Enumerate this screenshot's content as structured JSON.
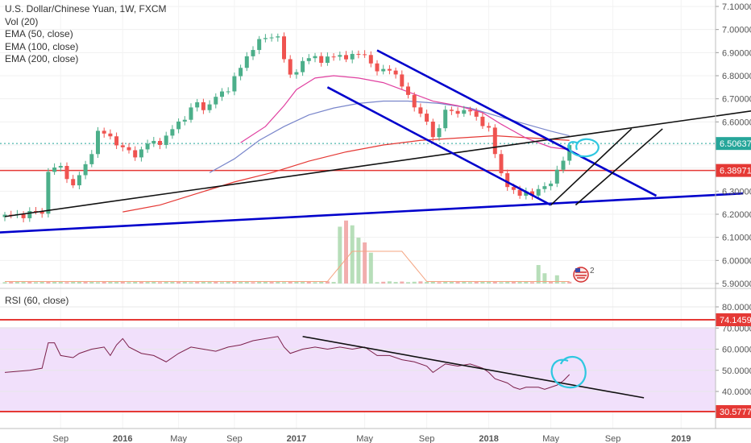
{
  "chart_data": [
    {
      "type": "candlestick",
      "title": "U.S. Dollar/Chinese Yuan, 1W, FXCM",
      "indicators": [
        "Vol (20)",
        "EMA (50, close)",
        "EMA (100, close)",
        "EMA (200, close)"
      ],
      "ylim": [
        5.9,
        7.1
      ],
      "y_ticks": [
        "7.10000",
        "7.00000",
        "6.90000",
        "6.80000",
        "6.70000",
        "6.60000",
        "6.50000",
        "6.40000",
        "6.30000",
        "6.20000",
        "6.10000",
        "6.00000",
        "5.90000"
      ],
      "x_ticks": [
        "Sep",
        "2016",
        "May",
        "Sep",
        "2017",
        "May",
        "Sep",
        "2018",
        "May",
        "Sep",
        "2019"
      ],
      "price_labels": [
        {
          "value": 6.50637,
          "label": "6.50637",
          "color": "#26a69a"
        },
        {
          "value": 6.38971,
          "label": "6.38971",
          "color": "#e53935"
        }
      ],
      "horizontal_lines": [
        {
          "value": 6.38971,
          "color": "#e53935"
        }
      ],
      "candle_path": [
        [
          0,
          6.19
        ],
        [
          6,
          6.21
        ],
        [
          7,
          6.39
        ],
        [
          9,
          6.4
        ],
        [
          10,
          6.37
        ],
        [
          11,
          6.32
        ],
        [
          13,
          6.41
        ],
        [
          15,
          6.55
        ],
        [
          17,
          6.54
        ],
        [
          19,
          6.48
        ],
        [
          21,
          6.46
        ],
        [
          23,
          6.5
        ],
        [
          26,
          6.53
        ],
        [
          28,
          6.6
        ],
        [
          30,
          6.65
        ],
        [
          31,
          6.68
        ],
        [
          32,
          6.66
        ],
        [
          34,
          6.7
        ],
        [
          36,
          6.75
        ],
        [
          38,
          6.83
        ],
        [
          40,
          6.93
        ],
        [
          42,
          6.96
        ],
        [
          44,
          6.98
        ],
        [
          45,
          6.86
        ],
        [
          46,
          6.8
        ],
        [
          48,
          6.86
        ],
        [
          50,
          6.88
        ],
        [
          52,
          6.87
        ],
        [
          54,
          6.89
        ],
        [
          56,
          6.88
        ],
        [
          58,
          6.9
        ],
        [
          60,
          6.81
        ],
        [
          62,
          6.84
        ],
        [
          64,
          6.75
        ],
        [
          66,
          6.68
        ],
        [
          67,
          6.62
        ],
        [
          68,
          6.6
        ],
        [
          69,
          6.54
        ],
        [
          70,
          6.58
        ],
        [
          71,
          6.64
        ],
        [
          73,
          6.65
        ],
        [
          75,
          6.64
        ],
        [
          77,
          6.6
        ],
        [
          78,
          6.56
        ],
        [
          79,
          6.46
        ],
        [
          80,
          6.38
        ],
        [
          81,
          6.33
        ],
        [
          82,
          6.29
        ],
        [
          83,
          6.28
        ],
        [
          84,
          6.31
        ],
        [
          85,
          6.28
        ],
        [
          86,
          6.3
        ],
        [
          87,
          6.32
        ],
        [
          88,
          6.35
        ],
        [
          89,
          6.38
        ],
        [
          90,
          6.43
        ],
        [
          91,
          6.5
        ]
      ],
      "ema_50_path": [
        [
          38,
          6.51
        ],
        [
          42,
          6.58
        ],
        [
          45,
          6.67
        ],
        [
          47,
          6.74
        ],
        [
          50,
          6.79
        ],
        [
          53,
          6.8
        ],
        [
          57,
          6.79
        ],
        [
          61,
          6.77
        ],
        [
          65,
          6.73
        ],
        [
          69,
          6.69
        ],
        [
          73,
          6.67
        ],
        [
          77,
          6.64
        ],
        [
          80,
          6.59
        ],
        [
          84,
          6.53
        ],
        [
          88,
          6.49
        ],
        [
          91,
          6.48
        ]
      ],
      "ema_100_path": [
        [
          33,
          6.38
        ],
        [
          37,
          6.44
        ],
        [
          41,
          6.52
        ],
        [
          45,
          6.58
        ],
        [
          49,
          6.63
        ],
        [
          53,
          6.66
        ],
        [
          57,
          6.68
        ],
        [
          61,
          6.69
        ],
        [
          65,
          6.69
        ],
        [
          70,
          6.68
        ],
        [
          75,
          6.66
        ],
        [
          80,
          6.62
        ],
        [
          84,
          6.59
        ],
        [
          88,
          6.56
        ],
        [
          91,
          6.54
        ]
      ],
      "ema_200_path": [
        [
          19,
          6.21
        ],
        [
          25,
          6.24
        ],
        [
          31,
          6.29
        ],
        [
          37,
          6.34
        ],
        [
          43,
          6.38
        ],
        [
          49,
          6.43
        ],
        [
          55,
          6.47
        ],
        [
          61,
          6.5
        ],
        [
          67,
          6.52
        ],
        [
          73,
          6.53
        ],
        [
          79,
          6.54
        ],
        [
          85,
          6.53
        ],
        [
          91,
          6.52
        ]
      ],
      "trendlines": [
        {
          "color": "#0000cc",
          "points": [
            [
              -23,
              6.09
            ],
            [
              119,
              6.29
            ]
          ]
        },
        {
          "color": "#111111",
          "points": [
            [
              0,
              6.19
            ],
            [
              121,
              6.65
            ]
          ]
        },
        {
          "color": "#0000cc",
          "points": [
            [
              60,
              6.91
            ],
            [
              105,
              6.28
            ]
          ]
        },
        {
          "color": "#0000cc",
          "points": [
            [
              52,
              6.75
            ],
            [
              88,
              6.24
            ]
          ]
        },
        {
          "color": "#111111",
          "points": [
            [
              88,
              6.24
            ],
            [
              101,
              6.57
            ]
          ]
        },
        {
          "color": "#111111",
          "points": [
            [
              92,
              6.24
            ],
            [
              106,
              6.57
            ]
          ]
        }
      ],
      "volume_peaks": [
        {
          "x": 54,
          "value": 0.83
        },
        {
          "x": 55,
          "value": 0.92
        },
        {
          "x": 56,
          "value": 0.85
        },
        {
          "x": 57,
          "value": 0.67
        },
        {
          "x": 58,
          "value": 0.6
        },
        {
          "x": 59,
          "value": 0.45
        },
        {
          "x": 86,
          "value": 0.27
        },
        {
          "x": 87,
          "value": 0.15
        },
        {
          "x": 89,
          "value": 0.12
        }
      ]
    },
    {
      "type": "line",
      "title": "RSI (60, close)",
      "ylim": [
        30,
        80
      ],
      "y_ticks": [
        "80.0000",
        "70.0000",
        "60.0000",
        "50.0000",
        "40.0000"
      ],
      "bands": [
        30.5777,
        74.1459
      ],
      "band_labels": [
        "74.1459",
        "30.5777"
      ],
      "values": [
        [
          0,
          49
        ],
        [
          4,
          50
        ],
        [
          6,
          51
        ],
        [
          7,
          63
        ],
        [
          8,
          63
        ],
        [
          9,
          57
        ],
        [
          11,
          56
        ],
        [
          12,
          58
        ],
        [
          14,
          60
        ],
        [
          16,
          61
        ],
        [
          17,
          57
        ],
        [
          18,
          62
        ],
        [
          19,
          65
        ],
        [
          20,
          61
        ],
        [
          22,
          58
        ],
        [
          24,
          57
        ],
        [
          26,
          54
        ],
        [
          28,
          58
        ],
        [
          30,
          61
        ],
        [
          32,
          60
        ],
        [
          34,
          59
        ],
        [
          36,
          61
        ],
        [
          38,
          62
        ],
        [
          40,
          64
        ],
        [
          42,
          65
        ],
        [
          44,
          66
        ],
        [
          45,
          61
        ],
        [
          46,
          58
        ],
        [
          48,
          60
        ],
        [
          50,
          61
        ],
        [
          52,
          60
        ],
        [
          54,
          61
        ],
        [
          56,
          60
        ],
        [
          58,
          61
        ],
        [
          60,
          57
        ],
        [
          62,
          57
        ],
        [
          64,
          55
        ],
        [
          66,
          54
        ],
        [
          68,
          52
        ],
        [
          69,
          49
        ],
        [
          70,
          51
        ],
        [
          71,
          53
        ],
        [
          73,
          52
        ],
        [
          75,
          53
        ],
        [
          77,
          51
        ],
        [
          78,
          49
        ],
        [
          79,
          46
        ],
        [
          81,
          44
        ],
        [
          82,
          42
        ],
        [
          83,
          41
        ],
        [
          84,
          42
        ],
        [
          86,
          42
        ],
        [
          87,
          41
        ],
        [
          88,
          42
        ],
        [
          89,
          43
        ],
        [
          90,
          45
        ],
        [
          91,
          48
        ]
      ],
      "trendline": {
        "color": "#111111",
        "points": [
          [
            48,
            66
          ],
          [
            103,
            37
          ]
        ]
      }
    }
  ]
}
